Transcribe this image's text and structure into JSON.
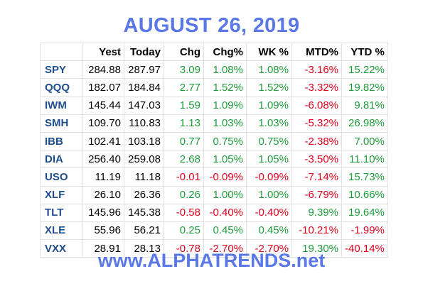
{
  "title": "AUGUST 26, 2019",
  "footer": "www.ALPHATRENDS.net",
  "colors": {
    "title": "#5a78e6",
    "symbol": "#1f4e8c",
    "positive": "#1e9b3a",
    "negative": "#e0001b"
  },
  "headers": [
    "",
    "Yest",
    "Today",
    "Chg",
    "Chg%",
    "WK %",
    "MTD%",
    "YTD %"
  ],
  "rows": [
    {
      "symbol": "SPY",
      "yest": "284.88",
      "today": "287.97",
      "chg": "3.09",
      "chg_pct": "1.08%",
      "wk": "1.08%",
      "mtd": "-3.16%",
      "ytd": "15.22%"
    },
    {
      "symbol": "QQQ",
      "yest": "182.07",
      "today": "184.84",
      "chg": "2.77",
      "chg_pct": "1.52%",
      "wk": "1.52%",
      "mtd": "-3.32%",
      "ytd": "19.82%"
    },
    {
      "symbol": "IWM",
      "yest": "145.44",
      "today": "147.03",
      "chg": "1.59",
      "chg_pct": "1.09%",
      "wk": "1.09%",
      "mtd": "-6.08%",
      "ytd": "9.81%"
    },
    {
      "symbol": "SMH",
      "yest": "109.70",
      "today": "110.83",
      "chg": "1.13",
      "chg_pct": "1.03%",
      "wk": "1.03%",
      "mtd": "-5.32%",
      "ytd": "26.98%"
    },
    {
      "symbol": "IBB",
      "yest": "102.41",
      "today": "103.18",
      "chg": "0.77",
      "chg_pct": "0.75%",
      "wk": "0.75%",
      "mtd": "-2.38%",
      "ytd": "7.00%"
    },
    {
      "symbol": "DIA",
      "yest": "256.40",
      "today": "259.08",
      "chg": "2.68",
      "chg_pct": "1.05%",
      "wk": "1.05%",
      "mtd": "-3.50%",
      "ytd": "11.10%"
    },
    {
      "symbol": "USO",
      "yest": "11.19",
      "today": "11.18",
      "chg": "-0.01",
      "chg_pct": "-0.09%",
      "wk": "-0.09%",
      "mtd": "-7.14%",
      "ytd": "15.73%"
    },
    {
      "symbol": "XLF",
      "yest": "26.10",
      "today": "26.36",
      "chg": "0.26",
      "chg_pct": "1.00%",
      "wk": "1.00%",
      "mtd": "-6.79%",
      "ytd": "10.66%"
    },
    {
      "symbol": "TLT",
      "yest": "145.96",
      "today": "145.38",
      "chg": "-0.58",
      "chg_pct": "-0.40%",
      "wk": "-0.40%",
      "mtd": "9.39%",
      "ytd": "19.64%"
    },
    {
      "symbol": "XLE",
      "yest": "55.96",
      "today": "56.21",
      "chg": "0.25",
      "chg_pct": "0.45%",
      "wk": "0.45%",
      "mtd": "-10.21%",
      "ytd": "-1.99%"
    },
    {
      "symbol": "VXX",
      "yest": "28.91",
      "today": "28.13",
      "chg": "-0.78",
      "chg_pct": "-2.70%",
      "wk": "-2.70%",
      "mtd": "19.30%",
      "ytd": "-40.14%"
    }
  ]
}
